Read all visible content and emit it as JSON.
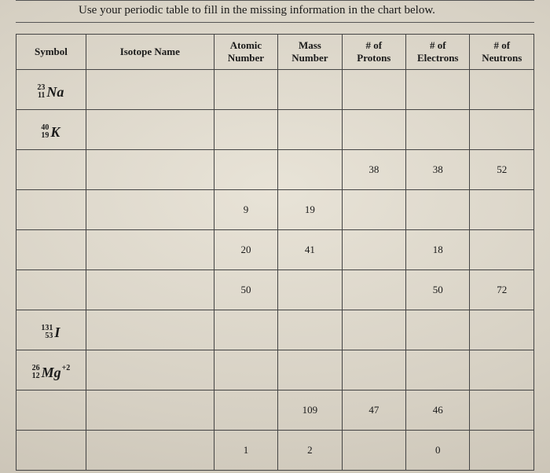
{
  "instruction": "Use your periodic table to fill in the missing information in the chart below.",
  "columns": {
    "symbol": "Symbol",
    "name": "Isotope Name",
    "atomic1": "Atomic",
    "atomic2": "Number",
    "mass1": "Mass",
    "mass2": "Number",
    "protons1": "# of",
    "protons2": "Protons",
    "electrons1": "# of",
    "electrons2": "Electrons",
    "neutrons1": "# of",
    "neutrons2": "Neutrons"
  },
  "rows": [
    {
      "symbol": {
        "mass": "23",
        "z": "11",
        "el": "Na",
        "chg": ""
      },
      "name": "",
      "Z": "",
      "A": "",
      "p": "",
      "e": "",
      "n": ""
    },
    {
      "symbol": {
        "mass": "40",
        "z": "19",
        "el": "K",
        "chg": ""
      },
      "name": "",
      "Z": "",
      "A": "",
      "p": "",
      "e": "",
      "n": ""
    },
    {
      "symbol": null,
      "name": "",
      "Z": "",
      "A": "",
      "p": "38",
      "e": "38",
      "n": "52"
    },
    {
      "symbol": null,
      "name": "",
      "Z": "9",
      "A": "19",
      "p": "",
      "e": "",
      "n": ""
    },
    {
      "symbol": null,
      "name": "",
      "Z": "20",
      "A": "41",
      "p": "",
      "e": "18",
      "n": ""
    },
    {
      "symbol": null,
      "name": "",
      "Z": "50",
      "A": "",
      "p": "",
      "e": "50",
      "n": "72"
    },
    {
      "symbol": {
        "mass": "131",
        "z": "53",
        "el": "I",
        "chg": ""
      },
      "name": "",
      "Z": "",
      "A": "",
      "p": "",
      "e": "",
      "n": ""
    },
    {
      "symbol": {
        "mass": "26",
        "z": "12",
        "el": "Mg",
        "chg": "+2"
      },
      "name": "",
      "Z": "",
      "A": "",
      "p": "",
      "e": "",
      "n": ""
    },
    {
      "symbol": null,
      "name": "",
      "Z": "",
      "A": "109",
      "p": "47",
      "e": "46",
      "n": ""
    },
    {
      "symbol": null,
      "name": "",
      "Z": "1",
      "A": "2",
      "p": "",
      "e": "0",
      "n": ""
    }
  ]
}
